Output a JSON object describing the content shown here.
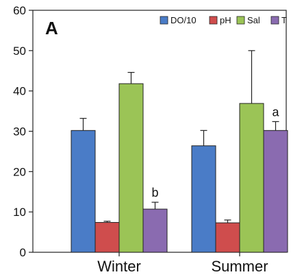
{
  "chart_data": {
    "type": "bar",
    "panel_label": "A",
    "categories": [
      "Winter",
      "Summer"
    ],
    "ylim": [
      0,
      60
    ],
    "yticks": [
      0,
      10,
      20,
      30,
      40,
      50,
      60
    ],
    "grid": false,
    "legend_position": "top-right",
    "series": [
      {
        "name": "DO/10",
        "color": "#4a7cc7",
        "values": [
          30.2,
          26.4
        ],
        "errors": [
          3.0,
          3.8
        ]
      },
      {
        "name": "pH",
        "color": "#cf4d4d",
        "values": [
          7.4,
          7.3
        ],
        "errors": [
          0.3,
          0.7
        ]
      },
      {
        "name": "Sal",
        "color": "#9bc456",
        "values": [
          41.8,
          36.9
        ],
        "errors": [
          2.8,
          13.1
        ]
      },
      {
        "name": "T",
        "color": "#8a6bb0",
        "values": [
          10.7,
          30.2
        ],
        "errors": [
          1.7,
          2.2
        ]
      }
    ],
    "annotations": [
      {
        "category": "Winter",
        "series": "T",
        "text": "b"
      },
      {
        "category": "Summer",
        "series": "T",
        "text": "a"
      }
    ]
  }
}
